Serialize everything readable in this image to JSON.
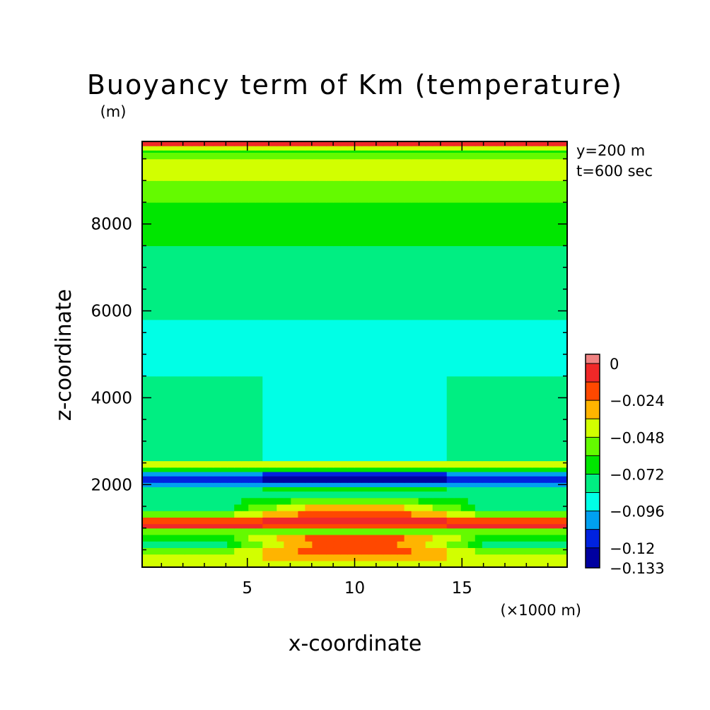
{
  "chart_data": {
    "type": "heatmap",
    "title": "Buoyancy term of Km (temperature)",
    "ylabel": "z-coordinate",
    "yunit": "(m)",
    "xlabel": "x-coordinate",
    "xunit": "(×1000 m)",
    "annotations": [
      "y=200 m",
      "t=600 sec"
    ],
    "xlim": [
      0.1,
      19.9
    ],
    "ylim": [
      100,
      9900
    ],
    "xticks": [
      5,
      10,
      15
    ],
    "xtick_labels": [
      "5",
      "10",
      "15"
    ],
    "yticks": [
      2000,
      4000,
      6000,
      8000
    ],
    "ytick_labels": [
      "2000",
      "4000",
      "6000",
      "8000"
    ],
    "colorbar": {
      "levels": [
        -0.133,
        -0.12,
        -0.108,
        -0.096,
        -0.084,
        -0.072,
        -0.06,
        -0.048,
        -0.036,
        -0.024,
        -0.012,
        0,
        0.006
      ],
      "labels": [
        {
          "value": 0,
          "text": "0"
        },
        {
          "value": -0.024,
          "text": "−0.024"
        },
        {
          "value": -0.048,
          "text": "−0.048"
        },
        {
          "value": -0.072,
          "text": "−0.072"
        },
        {
          "value": -0.096,
          "text": "−0.096"
        },
        {
          "value": -0.12,
          "text": "−0.12"
        },
        {
          "value": -0.133,
          "text": "−0.133"
        }
      ],
      "colors": [
        "#0000a0",
        "#0022e0",
        "#00a0f0",
        "#00ffe6",
        "#00ee82",
        "#00e600",
        "#64fa00",
        "#d2ff00",
        "#ffb400",
        "#ff4800",
        "#f02828",
        "#f08282"
      ]
    },
    "z_profile_sides": [
      {
        "z": 100,
        "level": 7
      },
      {
        "z": 250,
        "level": 7
      },
      {
        "z": 400,
        "level": 6
      },
      {
        "z": 550,
        "level": 4
      },
      {
        "z": 700,
        "level": 5
      },
      {
        "z": 850,
        "level": 6
      },
      {
        "z": 1000,
        "level": 10
      },
      {
        "z": 1100,
        "level": 9
      },
      {
        "z": 1250,
        "level": 6
      },
      {
        "z": 1400,
        "level": 4
      },
      {
        "z": 1550,
        "level": 4
      },
      {
        "z": 1700,
        "level": 4
      },
      {
        "z": 1850,
        "level": 4
      },
      {
        "z": 1950,
        "level": 2
      },
      {
        "z": 2050,
        "level": 1
      },
      {
        "z": 2200,
        "level": 2
      },
      {
        "z": 2300,
        "level": 5
      },
      {
        "z": 2400,
        "level": 7
      },
      {
        "z": 2550,
        "level": 4
      },
      {
        "z": 2700,
        "level": 4
      },
      {
        "z": 3000,
        "level": 4
      },
      {
        "z": 3500,
        "level": 4
      },
      {
        "z": 4000,
        "level": 4
      },
      {
        "z": 4500,
        "level": 3
      },
      {
        "z": 5000,
        "level": 3
      },
      {
        "z": 5500,
        "level": 3
      },
      {
        "z": 5800,
        "level": 4
      },
      {
        "z": 6000,
        "level": 4
      },
      {
        "z": 6500,
        "level": 4
      },
      {
        "z": 7000,
        "level": 4
      },
      {
        "z": 7500,
        "level": 5
      },
      {
        "z": 8000,
        "level": 5
      },
      {
        "z": 8500,
        "level": 6
      },
      {
        "z": 9000,
        "level": 7
      },
      {
        "z": 9500,
        "level": 6
      },
      {
        "z": 9650,
        "level": 5
      },
      {
        "z": 9700,
        "level": 7
      },
      {
        "z": 9800,
        "level": 10
      },
      {
        "z": 9900,
        "level": 11
      }
    ],
    "z_profile_center": [
      {
        "z": 100,
        "level": 7
      },
      {
        "z": 250,
        "level": 8
      },
      {
        "z": 400,
        "level": 9
      },
      {
        "z": 550,
        "level": 9
      },
      {
        "z": 700,
        "level": 9
      },
      {
        "z": 850,
        "level": 6
      },
      {
        "z": 1000,
        "level": 9
      },
      {
        "z": 1100,
        "level": 10
      },
      {
        "z": 1250,
        "level": 9
      },
      {
        "z": 1400,
        "level": 8
      },
      {
        "z": 1550,
        "level": 6
      },
      {
        "z": 1700,
        "level": 4
      },
      {
        "z": 1850,
        "level": 5
      },
      {
        "z": 1950,
        "level": 2
      },
      {
        "z": 2050,
        "level": 0
      },
      {
        "z": 2200,
        "level": 1
      },
      {
        "z": 2300,
        "level": 5
      },
      {
        "z": 2400,
        "level": 7
      },
      {
        "z": 2550,
        "level": 3
      },
      {
        "z": 2700,
        "level": 3
      },
      {
        "z": 3000,
        "level": 3
      },
      {
        "z": 3500,
        "level": 3
      },
      {
        "z": 4000,
        "level": 3
      },
      {
        "z": 4500,
        "level": 3
      },
      {
        "z": 5000,
        "level": 3
      },
      {
        "z": 5500,
        "level": 3
      },
      {
        "z": 5800,
        "level": 4
      },
      {
        "z": 6000,
        "level": 4
      },
      {
        "z": 6500,
        "level": 4
      },
      {
        "z": 7000,
        "level": 4
      },
      {
        "z": 7500,
        "level": 5
      },
      {
        "z": 8000,
        "level": 5
      },
      {
        "z": 8500,
        "level": 6
      },
      {
        "z": 9000,
        "level": 7
      },
      {
        "z": 9500,
        "level": 6
      },
      {
        "z": 9650,
        "level": 5
      },
      {
        "z": 9700,
        "level": 7
      },
      {
        "z": 9800,
        "level": 10
      },
      {
        "z": 9900,
        "level": 11
      }
    ]
  }
}
